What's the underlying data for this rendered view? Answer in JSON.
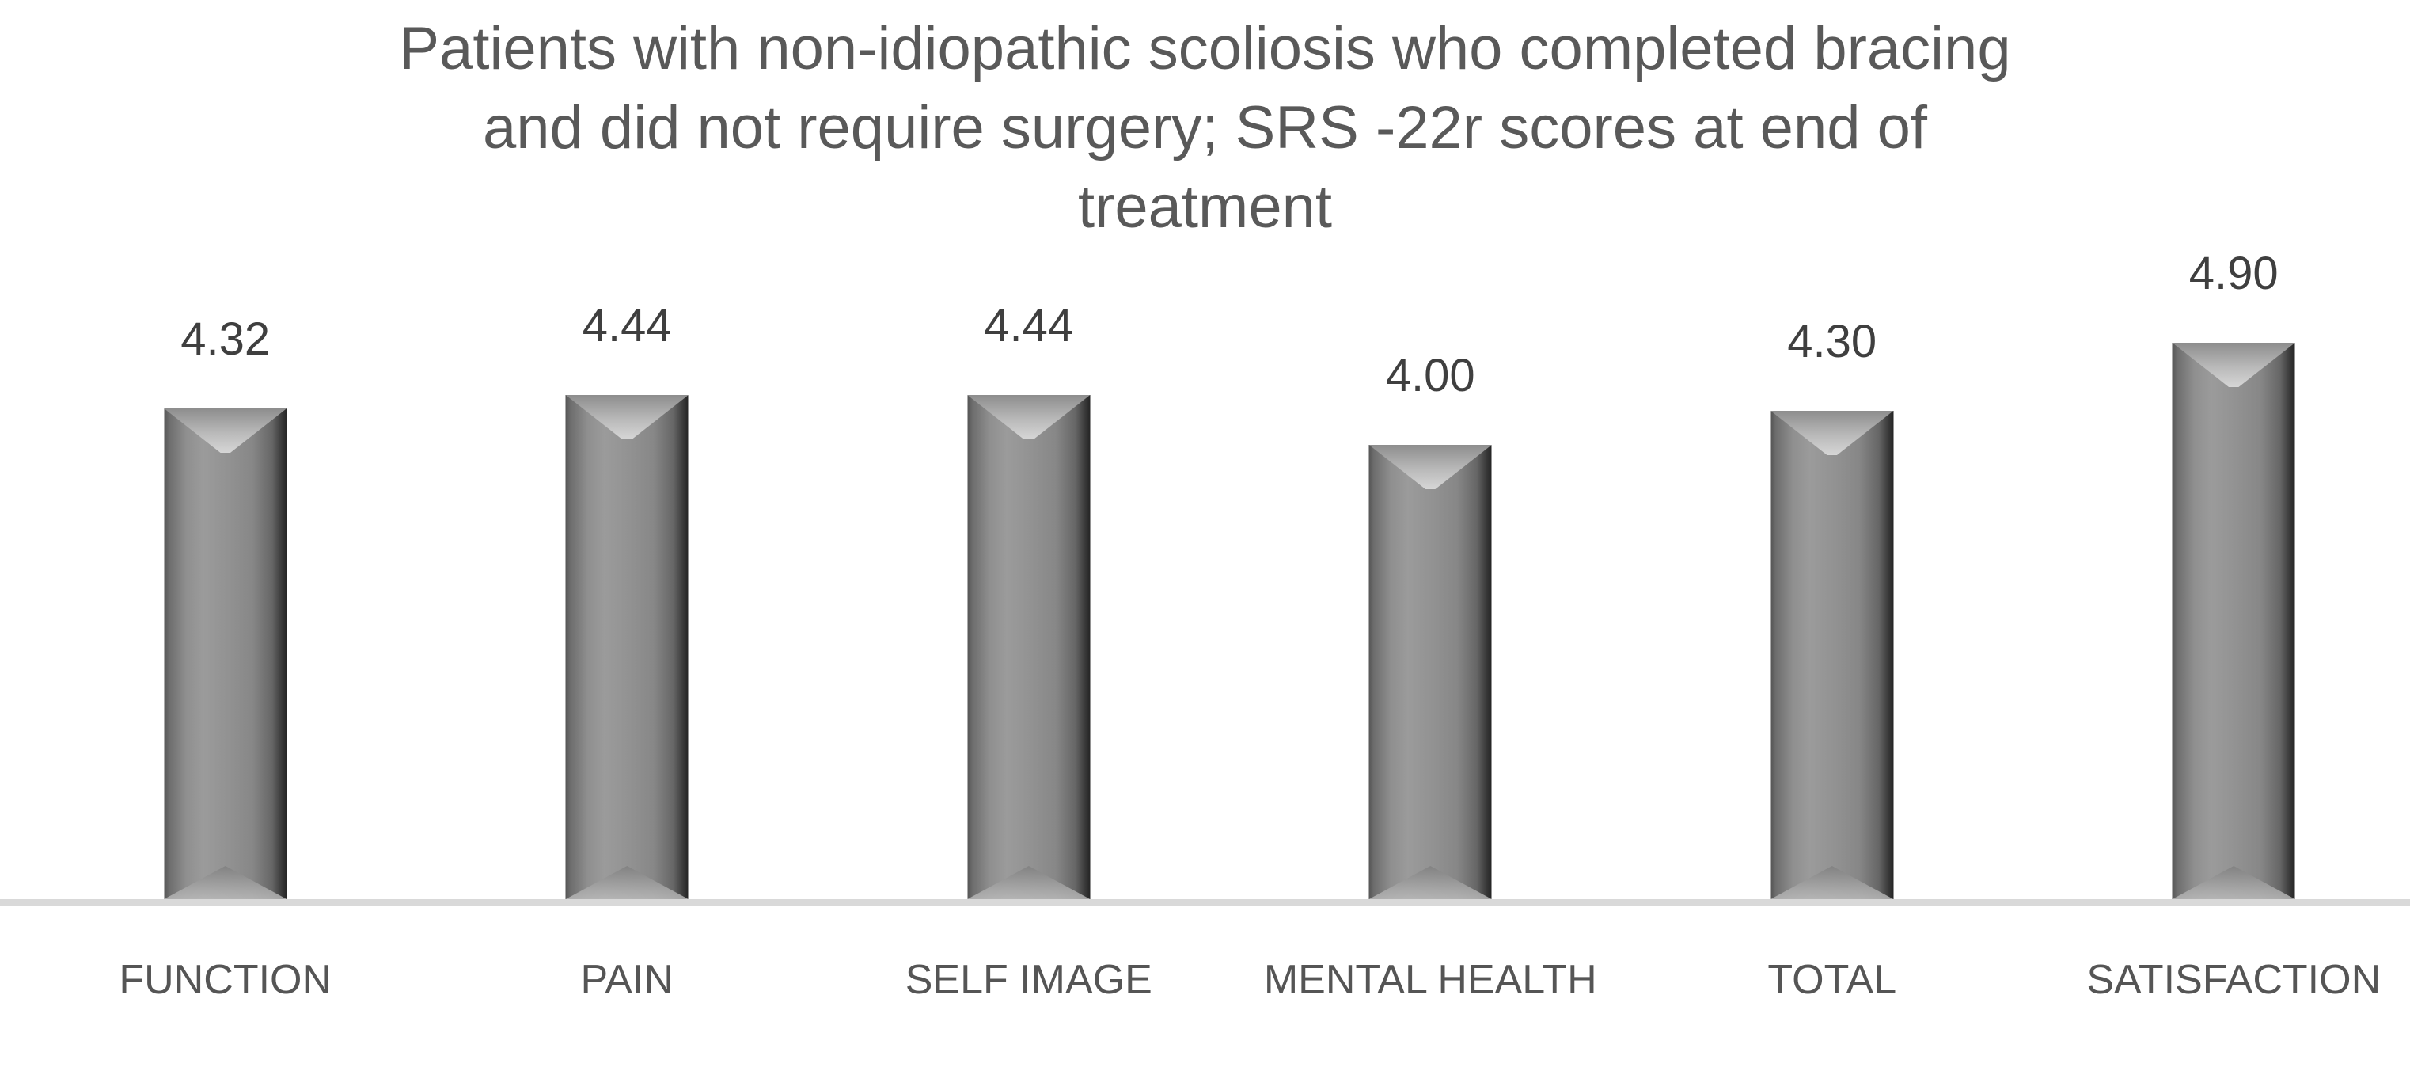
{
  "chart_data": {
    "type": "bar",
    "title": "Patients with non-idiopathic scoliosis who completed bracing and did not require surgery; SRS -22r scores at end of treatment",
    "title_lines": [
      "Patients with non-idiopathic scoliosis who completed bracing",
      "and did not require surgery; SRS -22r scores at end of",
      "treatment"
    ],
    "categories": [
      "FUNCTION",
      "PAIN",
      "SELF IMAGE",
      "MENTAL HEALTH",
      "TOTAL",
      "SATISFACTION"
    ],
    "values": [
      4.32,
      4.44,
      4.44,
      4.0,
      4.3,
      4.9
    ],
    "value_labels": [
      "4.32",
      "4.44",
      "4.44",
      "4.00",
      "4.30",
      "4.90"
    ],
    "xlabel": "",
    "ylabel": "",
    "ylim": [
      0,
      5
    ],
    "grid": false,
    "legend": false,
    "y_axis_visible": false,
    "data_labels_position": "above-bar",
    "bar_style": "gray-3d-bevel",
    "colors": {
      "background": "#ffffff",
      "bar_mid": "#8f8f8f",
      "bar_edge_dark": "#242424",
      "bar_bevel_light": "#d6d6d6",
      "axis_line": "#d9d9d9",
      "title_text": "#595959",
      "value_label_text": "#3f3f3f",
      "category_label_text": "#555555"
    }
  }
}
